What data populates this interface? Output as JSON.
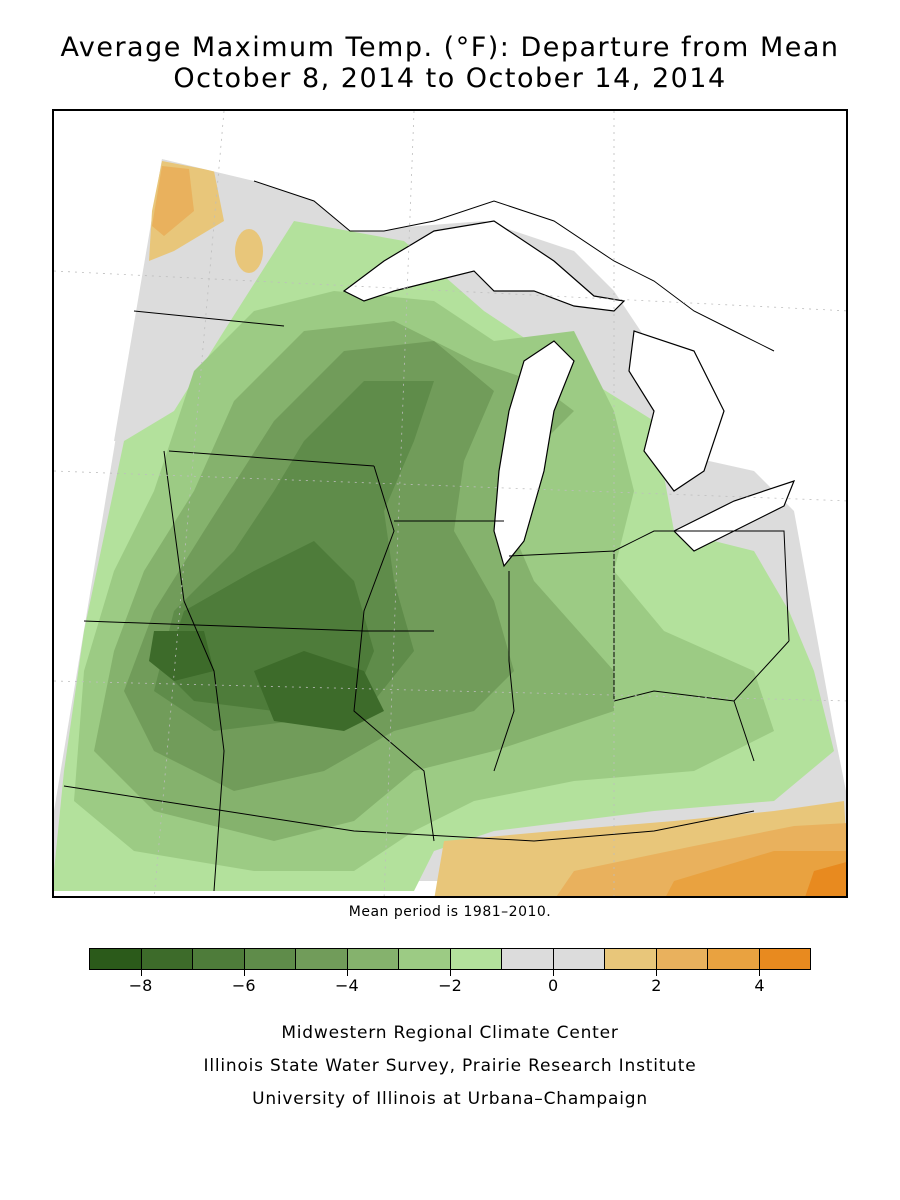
{
  "title": {
    "line1": "Average Maximum Temp. (°F): Departure from Mean",
    "line2": "October 8, 2014 to October 14, 2014"
  },
  "mean_note": "Mean period is 1981–2010.",
  "legend": {
    "bins": [
      {
        "from": -9,
        "to": -8,
        "color": "#2b5a1a"
      },
      {
        "from": -8,
        "to": -7,
        "color": "#3d6b2a"
      },
      {
        "from": -7,
        "to": -6,
        "color": "#4e7c3a"
      },
      {
        "from": -6,
        "to": -5,
        "color": "#5f8c4a"
      },
      {
        "from": -5,
        "to": -4,
        "color": "#719c5a"
      },
      {
        "from": -4,
        "to": -3,
        "color": "#85b26d"
      },
      {
        "from": -3,
        "to": -2,
        "color": "#9ccb84"
      },
      {
        "from": -2,
        "to": -1,
        "color": "#b3e19c"
      },
      {
        "from": -1,
        "to": 0,
        "color": "#dcdcdc"
      },
      {
        "from": 0,
        "to": 1,
        "color": "#dcdcdc"
      },
      {
        "from": 1,
        "to": 2,
        "color": "#e8c67a"
      },
      {
        "from": 2,
        "to": 3,
        "color": "#e9b15d"
      },
      {
        "from": 3,
        "to": 4,
        "color": "#e9a240"
      },
      {
        "from": 4,
        "to": 5,
        "color": "#e88a1f"
      }
    ],
    "tick_labels": [
      "−8",
      "−6",
      "−4",
      "−2",
      "0",
      "2",
      "4"
    ],
    "tick_values": [
      -8,
      -6,
      -4,
      -2,
      0,
      2,
      4
    ]
  },
  "credits": {
    "line1": "Midwestern Regional Climate Center",
    "line2": "Illinois State Water Survey, Prairie Research Institute",
    "line3": "University of Illinois at Urbana–Champaign"
  }
}
